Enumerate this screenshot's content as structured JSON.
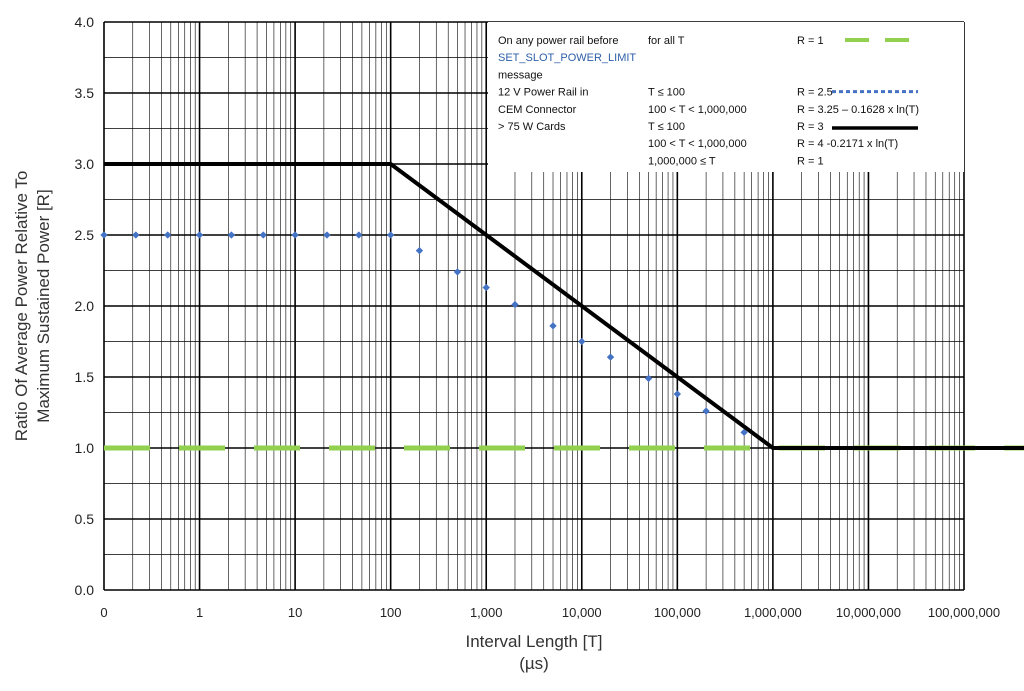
{
  "chart_data": {
    "type": "line",
    "title": "",
    "xlabel": "Interval Length  [T]",
    "xlabel_unit": "(µs)",
    "ylabel_line1": "Ratio Of Average Power Relative To",
    "ylabel_line2": "Maximum Sustained Power  [R]",
    "x_scale": "log",
    "x_ticks": [
      "0",
      "1",
      "10",
      "100",
      "1,000",
      "10,000",
      "100,000",
      "1,000,000",
      "10,000,000",
      "100,000,000"
    ],
    "ylim": [
      0,
      4
    ],
    "y_ticks": [
      "0.0",
      "0.5",
      "1.0",
      "1.5",
      "2.0",
      "2.5",
      "3.0",
      "3.5",
      "4.0"
    ],
    "grid": true,
    "legend_position": "top-right",
    "series": [
      {
        "key": "r1",
        "color": "#92d050",
        "style": "dashed",
        "x": [
          0.1,
          1000000000
        ],
        "y": [
          1,
          1
        ]
      },
      {
        "key": "r25",
        "color": "#4472c4",
        "style": "dotted",
        "x": [
          0.1,
          100,
          200,
          500,
          1000,
          2000,
          5000,
          10000,
          20000,
          50000,
          100000,
          200000,
          500000,
          1000000
        ],
        "y": [
          2.5,
          2.5,
          2.39,
          2.24,
          2.13,
          2.01,
          1.86,
          1.75,
          1.64,
          1.49,
          1.38,
          1.26,
          1.11,
          1.0
        ]
      },
      {
        "key": "r3",
        "color": "#000000",
        "style": "solid",
        "x": [
          0.1,
          100,
          1000000,
          1000000000
        ],
        "y": [
          3,
          3,
          1,
          1
        ]
      }
    ],
    "legend": {
      "rows": [
        {
          "c1": "On any power rail before",
          "c2": "for all T",
          "c3": "R = 1",
          "sample": "r1"
        },
        {
          "c1": "SET_SLOT_POWER_LIMIT",
          "c2": "",
          "c3": "",
          "sample": ""
        },
        {
          "c1": "message",
          "c2": "",
          "c3": "",
          "sample": ""
        },
        {
          "c1": "12 V Power Rail in",
          "c2": "T ≤ 100",
          "c3": "R = 2.5",
          "sample": "r25"
        },
        {
          "c1": "CEM Connector",
          "c2": "100 < T < 1,000,000",
          "c3": "R = 3.25 – 0.1628 x ln(T)",
          "sample": ""
        },
        {
          "c1": "> 75 W Cards",
          "c2": "T ≤ 100",
          "c3": "R = 3",
          "sample": "r3"
        },
        {
          "c1": "",
          "c2": "100 < T < 1,000,000",
          "c3": "R = 4 -0.2171 x  ln(T)",
          "sample": ""
        },
        {
          "c1": "",
          "c2": "1,000,000  ≤ T",
          "c3": "R = 1",
          "sample": ""
        }
      ]
    },
    "colors": {
      "grid": "#000000",
      "legend_bg": "#ffffff",
      "highlight_text": "#2e5fa8"
    }
  }
}
